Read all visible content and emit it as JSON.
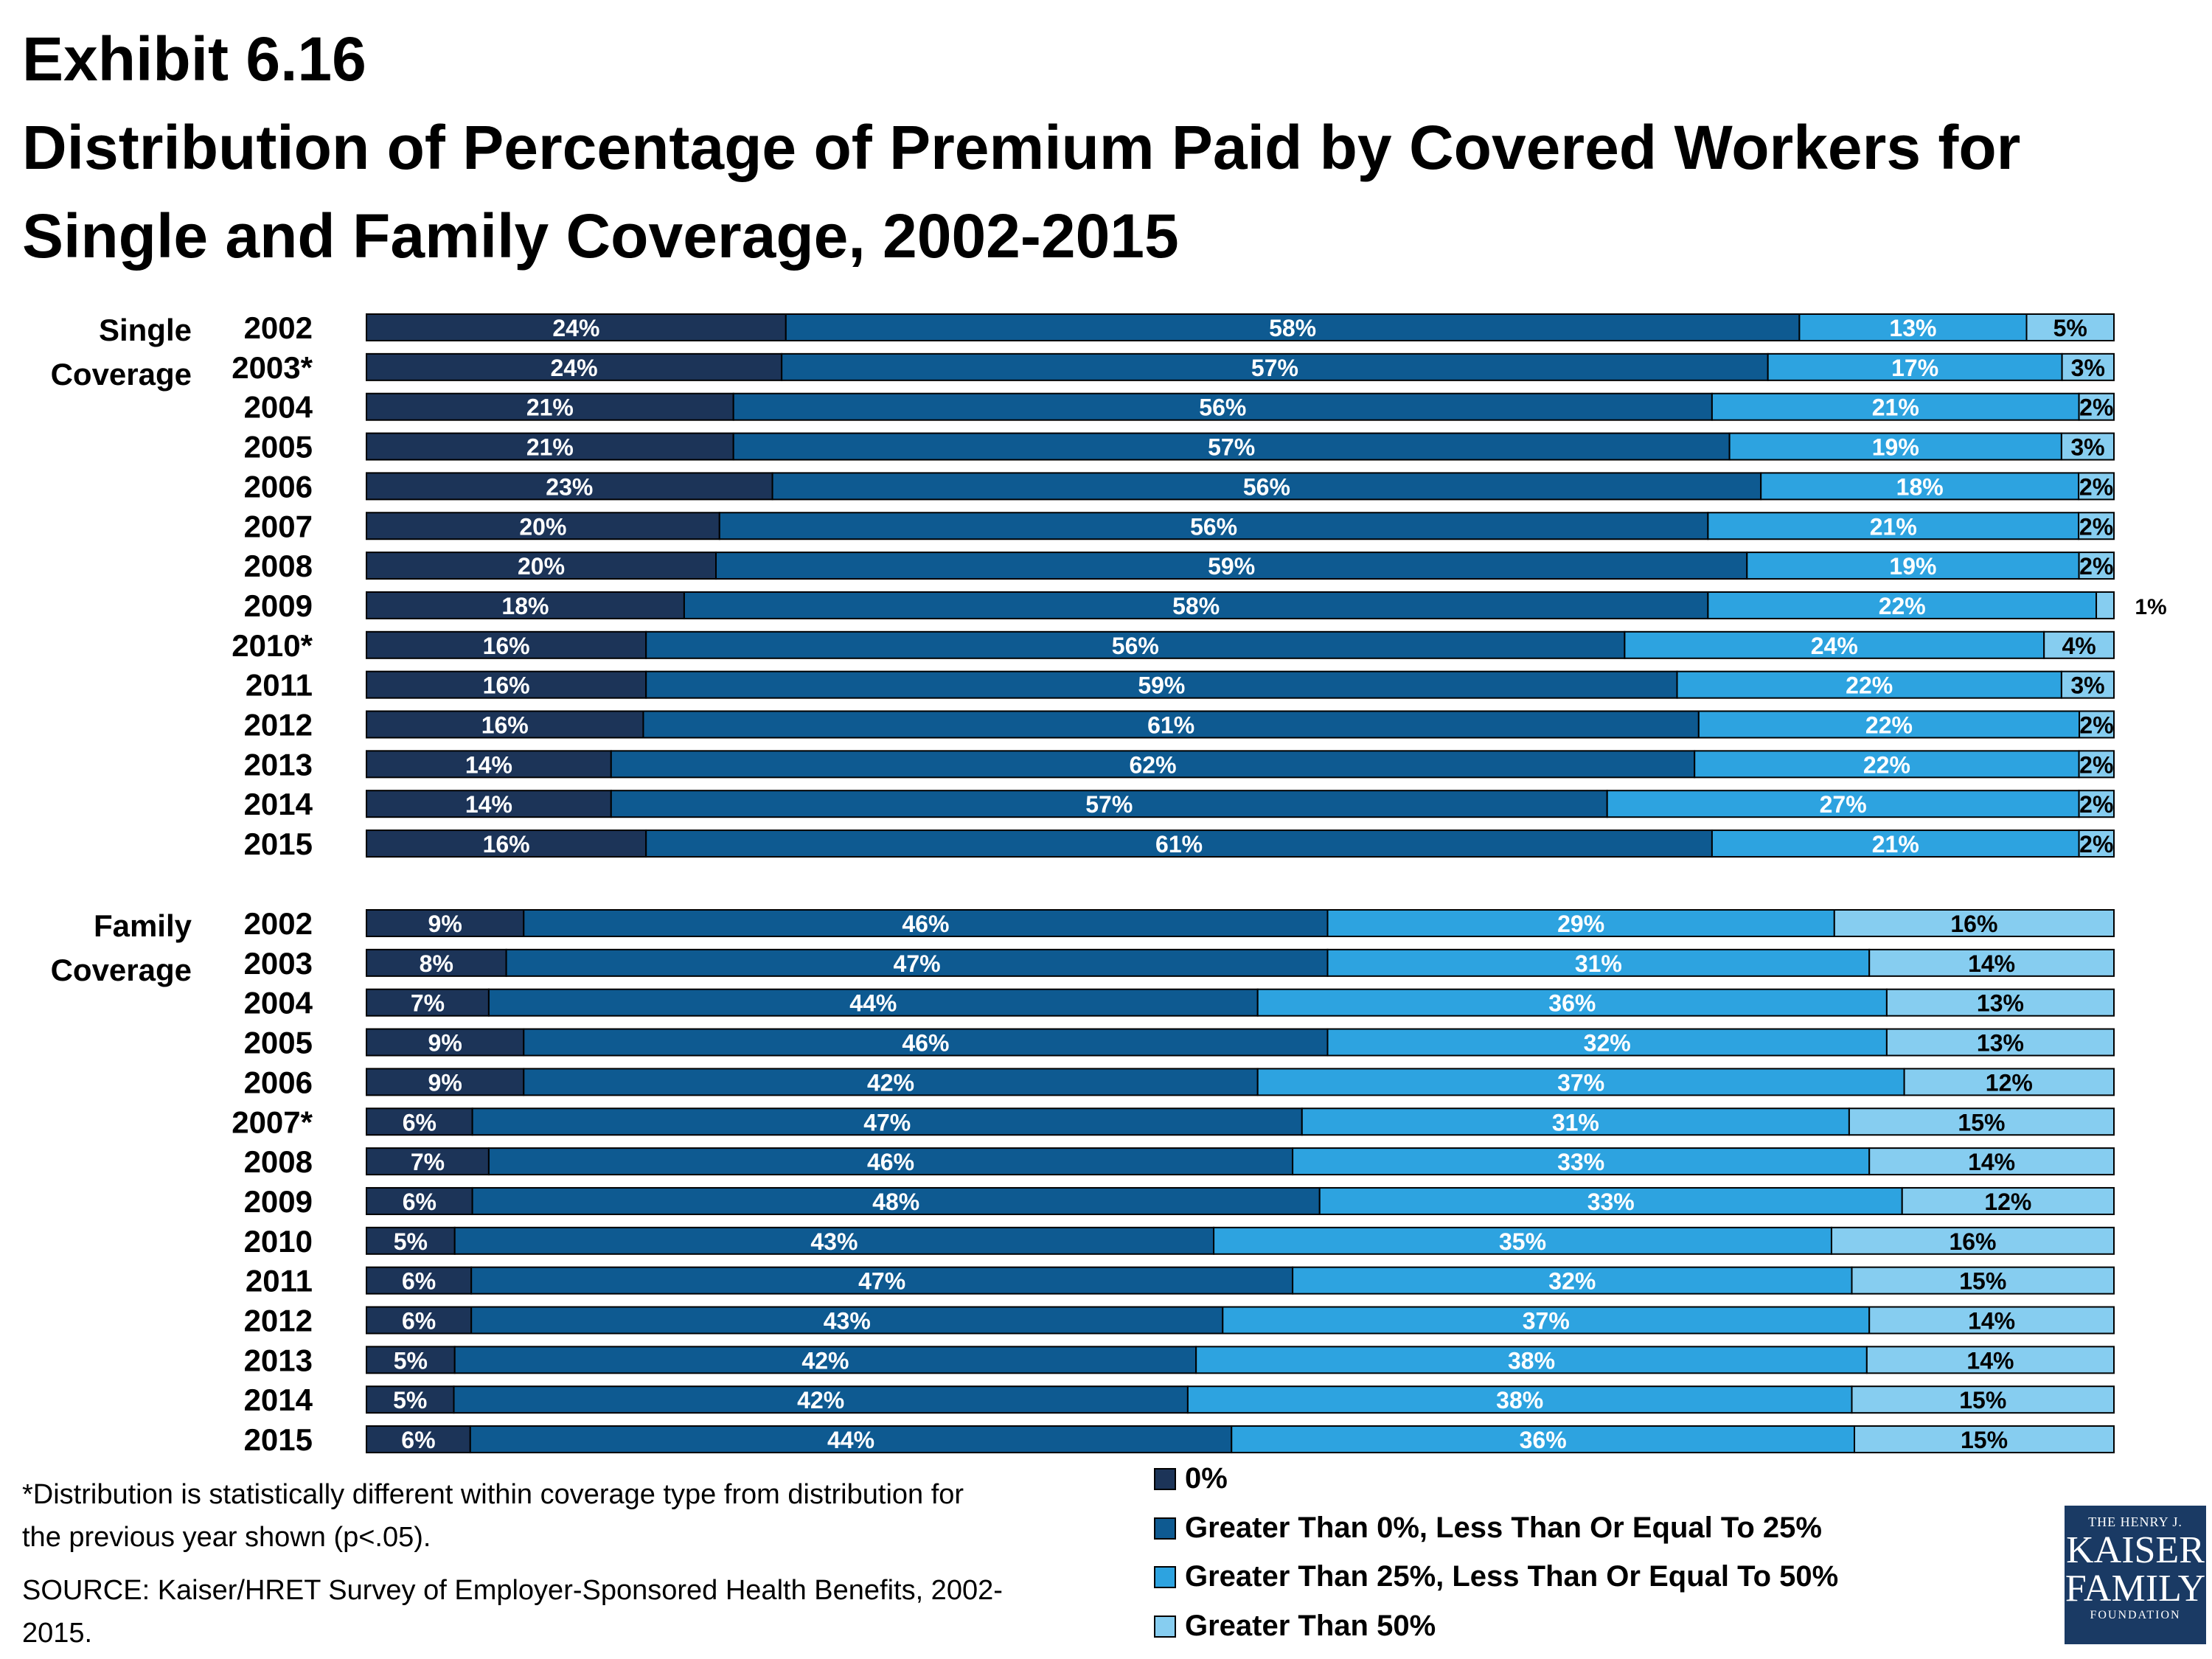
{
  "title": {
    "line1": "Exhibit 6.16",
    "line2": "Distribution of Percentage of Premium Paid by Covered Workers for",
    "line3": "Single and Family Coverage, 2002-2015"
  },
  "colors": {
    "zero": "#1c3458",
    "le25": "#0e5a91",
    "le50": "#2da3e0",
    "gt50": "#86cdf0"
  },
  "chart_data": {
    "type": "bar",
    "orientation": "horizontal",
    "stacked": true,
    "xlim": [
      0,
      100
    ],
    "series": [
      {
        "name": "0%"
      },
      {
        "name": "Greater Than 0%, Less Than Or Equal To 25%"
      },
      {
        "name": "Greater Than 25%, Less Than Or Equal To 50%"
      },
      {
        "name": "Greater Than 50%"
      }
    ],
    "groups": [
      {
        "label_line1": "Single",
        "label_line2": "Coverage",
        "rows": [
          {
            "year": "2002",
            "values": [
              24,
              58,
              13,
              5
            ]
          },
          {
            "year": "2003*",
            "values": [
              24,
              57,
              17,
              3
            ]
          },
          {
            "year": "2004",
            "values": [
              21,
              56,
              21,
              2
            ]
          },
          {
            "year": "2005",
            "values": [
              21,
              57,
              19,
              3
            ]
          },
          {
            "year": "2006",
            "values": [
              23,
              56,
              18,
              2
            ]
          },
          {
            "year": "2007",
            "values": [
              20,
              56,
              21,
              2
            ]
          },
          {
            "year": "2008",
            "values": [
              20,
              59,
              19,
              2
            ]
          },
          {
            "year": "2009",
            "values": [
              18,
              58,
              22,
              1
            ]
          },
          {
            "year": "2010*",
            "values": [
              16,
              56,
              24,
              4
            ]
          },
          {
            "year": "2011",
            "values": [
              16,
              59,
              22,
              3
            ]
          },
          {
            "year": "2012",
            "values": [
              16,
              61,
              22,
              2
            ]
          },
          {
            "year": "2013",
            "values": [
              14,
              62,
              22,
              2
            ]
          },
          {
            "year": "2014",
            "values": [
              14,
              57,
              27,
              2
            ]
          },
          {
            "year": "2015",
            "values": [
              16,
              61,
              21,
              2
            ]
          }
        ]
      },
      {
        "label_line1": "Family",
        "label_line2": "Coverage",
        "rows": [
          {
            "year": "2002",
            "values": [
              9,
              46,
              29,
              16
            ]
          },
          {
            "year": "2003",
            "values": [
              8,
              47,
              31,
              14
            ]
          },
          {
            "year": "2004",
            "values": [
              7,
              44,
              36,
              13
            ]
          },
          {
            "year": "2005",
            "values": [
              9,
              46,
              32,
              13
            ]
          },
          {
            "year": "2006",
            "values": [
              9,
              42,
              37,
              12
            ]
          },
          {
            "year": "2007*",
            "values": [
              6,
              47,
              31,
              15
            ]
          },
          {
            "year": "2008",
            "values": [
              7,
              46,
              33,
              14
            ]
          },
          {
            "year": "2009",
            "values": [
              6,
              48,
              33,
              12
            ]
          },
          {
            "year": "2010",
            "values": [
              5,
              43,
              35,
              16
            ]
          },
          {
            "year": "2011",
            "values": [
              6,
              47,
              32,
              15
            ]
          },
          {
            "year": "2012",
            "values": [
              6,
              43,
              37,
              14
            ]
          },
          {
            "year": "2013",
            "values": [
              5,
              42,
              38,
              14
            ]
          },
          {
            "year": "2014",
            "values": [
              5,
              42,
              38,
              15
            ]
          },
          {
            "year": "2015",
            "values": [
              6,
              44,
              36,
              15
            ]
          }
        ]
      }
    ]
  },
  "footnotes": {
    "significance": "*Distribution is statistically different within coverage type from distribution for the previous year shown (p<.05).",
    "source": "SOURCE:  Kaiser/HRET Survey of Employer-Sponsored Health Benefits, 2002-2015."
  },
  "logo": {
    "line1": "THE HENRY J.",
    "line2": "KAISER",
    "line3": "FAMILY",
    "line4": "FOUNDATION"
  }
}
